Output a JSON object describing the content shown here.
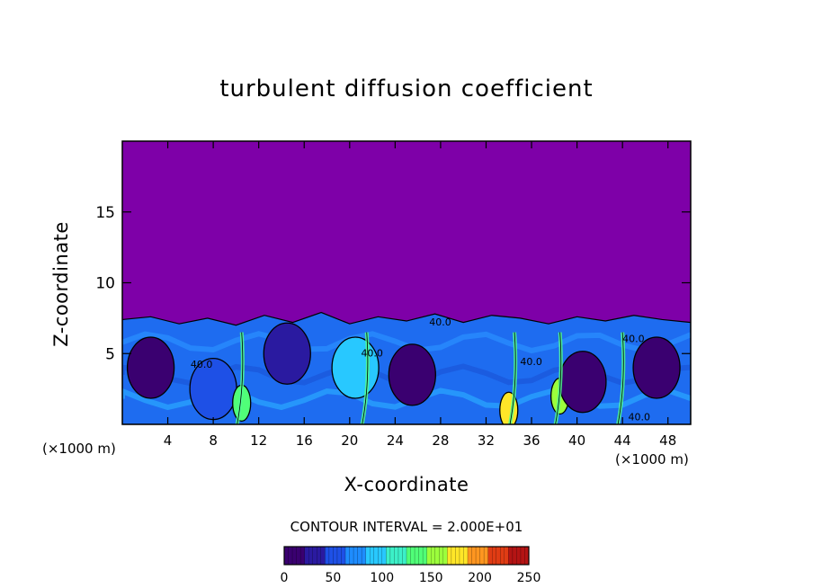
{
  "chart_data": {
    "type": "heatmap",
    "title": "turbulent diffusion coefficient",
    "xlabel": "X-coordinate",
    "ylabel": "Z-coordinate",
    "x_unit_label": "(×1000 m)",
    "z_unit_label": "(×1000 m)",
    "xlim": [
      0,
      50
    ],
    "ylim": [
      0,
      20
    ],
    "x_ticks": [
      4,
      8,
      12,
      16,
      20,
      24,
      28,
      32,
      36,
      40,
      44,
      48
    ],
    "y_ticks": [
      5,
      10,
      15
    ],
    "contour_interval_text": "CONTOUR INTERVAL = 2.000E+01",
    "colorbar": {
      "range": [
        0,
        250
      ],
      "ticks": [
        0,
        50,
        100,
        150,
        200,
        250
      ],
      "colormap": [
        "#3a0070",
        "#2a1aa0",
        "#1e50e6",
        "#1e8cff",
        "#28c8ff",
        "#3cf0c8",
        "#50ff78",
        "#9cff3c",
        "#ffe628",
        "#ff9620",
        "#e03c14",
        "#b41414"
      ]
    },
    "contour_labels": [
      "40.0",
      "40.0",
      "40.0",
      "40.0",
      "40.0",
      "40.0"
    ],
    "background_value_color": "#7e00a8",
    "turbulent_layer_top_km": 7.4,
    "cells": [
      {
        "x_km": 2.5,
        "z_km": 4.0,
        "value": 20
      },
      {
        "x_km": 8.0,
        "z_km": 2.5,
        "value": 60
      },
      {
        "x_km": 10.5,
        "z_km": 1.5,
        "value": 140
      },
      {
        "x_km": 14.5,
        "z_km": 5.0,
        "value": 30
      },
      {
        "x_km": 20.5,
        "z_km": 4.0,
        "value": 90
      },
      {
        "x_km": 25.5,
        "z_km": 3.5,
        "value": 10
      },
      {
        "x_km": 34.0,
        "z_km": 1.0,
        "value": 170
      },
      {
        "x_km": 38.5,
        "z_km": 2.0,
        "value": 150
      },
      {
        "x_km": 40.5,
        "z_km": 3.0,
        "value": 10
      },
      {
        "x_km": 47.0,
        "z_km": 4.0,
        "value": 20
      }
    ]
  }
}
